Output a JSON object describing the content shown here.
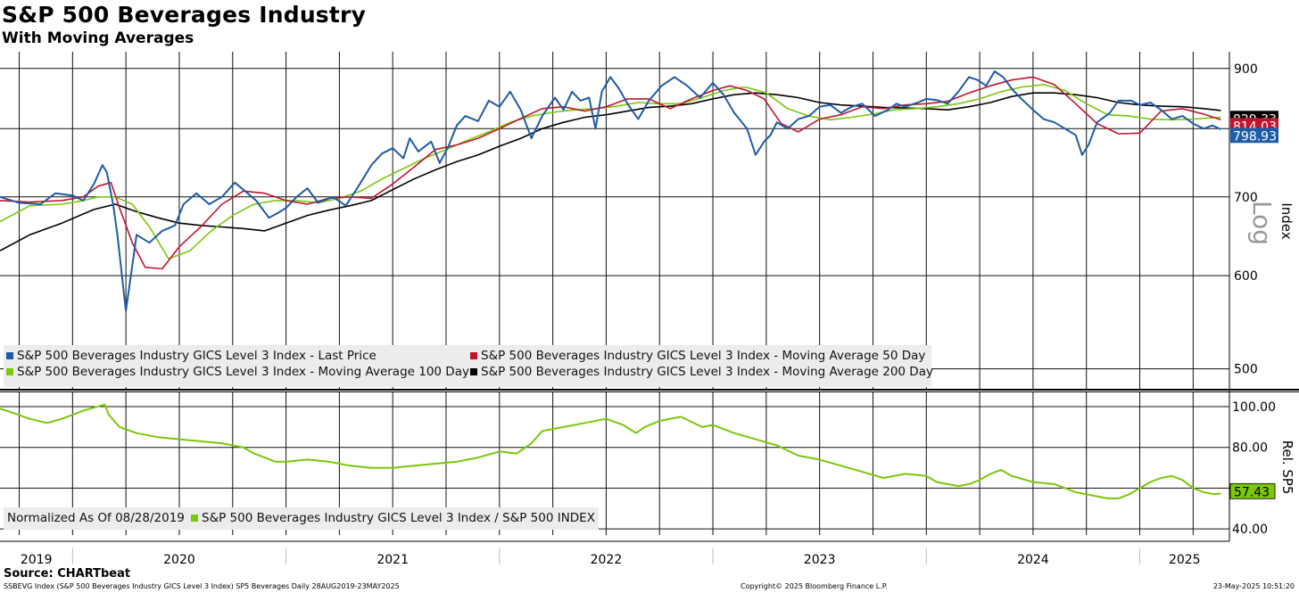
{
  "header": {
    "title": "S&P 500 Beverages Industry",
    "subtitle": "With Moving Averages"
  },
  "footer": {
    "source": "Source: CHARTbeat",
    "left": "SSBEVG Index (S&P 500 Beverages Industry GICS Level 3 Index) SP5 Beverages  Daily 28AUG2019-23MAY2025",
    "middle": "Copyright© 2025 Bloomberg Finance L.P.",
    "right": "23-May-2025 10:51:20"
  },
  "colors": {
    "last_price": "#1f5ba6",
    "ma50": "#c0152f",
    "ma100": "#7ac70c",
    "ma200": "#000000",
    "relative": "#7ac70c"
  },
  "chart_data": [
    {
      "type": "line",
      "title": "S&P 500 Beverages Industry",
      "subtitle": "With Moving Averages",
      "ylabel": "Index",
      "scale_label": "Log",
      "yscale": "log",
      "ylim": [
        480,
        930
      ],
      "yticks": [
        500,
        600,
        700,
        900
      ],
      "ytick_labels": [
        "500",
        "600",
        "700",
        "900"
      ],
      "xlim": [
        2019.66,
        2025.42
      ],
      "x_categories": [
        "2019",
        "2020",
        "2021",
        "2022",
        "2023",
        "2024",
        "2025"
      ],
      "legend": [
        "S&P 500 Beverages Industry GICS Level 3 Index - Last Price",
        "S&P 500 Beverages Industry GICS Level 3 Index - Moving Average 50 Day",
        "S&P 500 Beverages Industry GICS Level 3 Index - Moving Average 100 Day",
        "S&P 500 Beverages Industry GICS Level 3 Index - Moving Average 200 Day"
      ],
      "last_value_labels": [
        {
          "series": "Moving Average 200 Day",
          "text": "829.33",
          "value": 829.33
        },
        {
          "series": "Moving Average 50 Day",
          "text": "814.03",
          "value": 814.03
        },
        {
          "series": "Last Price",
          "text": "798.93",
          "value": 798.93
        }
      ],
      "series": [
        {
          "name": "Last Price",
          "x": [
            2019.66,
            2019.75,
            2019.85,
            2019.92,
            2020.0,
            2020.05,
            2020.1,
            2020.14,
            2020.16,
            2020.19,
            2020.21,
            2020.25,
            2020.3,
            2020.36,
            2020.42,
            2020.48,
            2020.52,
            2020.58,
            2020.64,
            2020.7,
            2020.76,
            2020.8,
            2020.86,
            2020.92,
            2020.96,
            2021.0,
            2021.05,
            2021.1,
            2021.15,
            2021.22,
            2021.28,
            2021.34,
            2021.4,
            2021.45,
            2021.5,
            2021.55,
            2021.58,
            2021.62,
            2021.68,
            2021.72,
            2021.76,
            2021.8,
            2021.84,
            2021.9,
            2021.95,
            2022.0,
            2022.05,
            2022.1,
            2022.15,
            2022.2,
            2022.26,
            2022.3,
            2022.34,
            2022.38,
            2022.42,
            2022.45,
            2022.48,
            2022.52,
            2022.56,
            2022.6,
            2022.65,
            2022.7,
            2022.76,
            2022.82,
            2022.88,
            2022.94,
            2023.0,
            2023.05,
            2023.1,
            2023.16,
            2023.2,
            2023.24,
            2023.27,
            2023.3,
            2023.35,
            2023.4,
            2023.45,
            2023.5,
            2023.55,
            2023.6,
            2023.65,
            2023.7,
            2023.76,
            2023.82,
            2023.86,
            2023.9,
            2023.96,
            2024.0,
            2024.05,
            2024.1,
            2024.15,
            2024.2,
            2024.24,
            2024.28,
            2024.32,
            2024.36,
            2024.4,
            2024.44,
            2024.5,
            2024.55,
            2024.6,
            2024.65,
            2024.7,
            2024.73,
            2024.76,
            2024.8,
            2024.86,
            2024.9,
            2024.96,
            2025.0,
            2025.05,
            2025.1,
            2025.15,
            2025.2,
            2025.25,
            2025.3,
            2025.34,
            2025.38
          ],
          "values": [
            700,
            692,
            690,
            705,
            702,
            695,
            718,
            745,
            735,
            690,
            650,
            560,
            650,
            640,
            655,
            662,
            690,
            705,
            690,
            700,
            720,
            710,
            695,
            672,
            678,
            685,
            700,
            712,
            692,
            700,
            688,
            715,
            745,
            762,
            770,
            755,
            785,
            765,
            780,
            748,
            772,
            805,
            820,
            812,
            845,
            835,
            860,
            830,
            785,
            820,
            850,
            830,
            860,
            845,
            850,
            800,
            860,
            885,
            865,
            840,
            815,
            845,
            870,
            885,
            870,
            850,
            875,
            855,
            825,
            800,
            760,
            780,
            790,
            810,
            800,
            815,
            820,
            835,
            838,
            825,
            835,
            840,
            820,
            830,
            840,
            835,
            842,
            848,
            846,
            840,
            860,
            885,
            880,
            870,
            895,
            885,
            865,
            850,
            830,
            815,
            810,
            800,
            790,
            760,
            775,
            810,
            825,
            845,
            845,
            838,
            842,
            830,
            815,
            820,
            808,
            800,
            805,
            799
          ]
        },
        {
          "name": "Moving Average 50 Day",
          "x": [
            2019.66,
            2019.8,
            2019.95,
            2020.05,
            2020.12,
            2020.18,
            2020.22,
            2020.28,
            2020.34,
            2020.42,
            2020.5,
            2020.6,
            2020.7,
            2020.8,
            2020.9,
            2021.0,
            2021.1,
            2021.2,
            2021.3,
            2021.4,
            2021.5,
            2021.6,
            2021.7,
            2021.8,
            2021.9,
            2022.0,
            2022.1,
            2022.2,
            2022.3,
            2022.4,
            2022.5,
            2022.6,
            2022.7,
            2022.8,
            2022.9,
            2023.0,
            2023.08,
            2023.16,
            2023.24,
            2023.32,
            2023.4,
            2023.5,
            2023.6,
            2023.7,
            2023.8,
            2023.9,
            2024.0,
            2024.1,
            2024.2,
            2024.3,
            2024.4,
            2024.5,
            2024.6,
            2024.7,
            2024.8,
            2024.9,
            2025.0,
            2025.1,
            2025.2,
            2025.3,
            2025.38
          ],
          "values": [
            695,
            693,
            695,
            700,
            715,
            720,
            685,
            640,
            610,
            608,
            635,
            660,
            690,
            708,
            705,
            695,
            690,
            698,
            700,
            698,
            718,
            742,
            768,
            775,
            785,
            800,
            816,
            832,
            835,
            828,
            835,
            848,
            848,
            832,
            848,
            862,
            870,
            862,
            848,
            808,
            795,
            815,
            822,
            835,
            832,
            838,
            840,
            844,
            858,
            870,
            880,
            885,
            872,
            840,
            808,
            792,
            793,
            828,
            832,
            823,
            814
          ]
        },
        {
          "name": "Moving Average 100 Day",
          "x": [
            2019.66,
            2019.8,
            2019.95,
            2020.05,
            2020.12,
            2020.2,
            2020.28,
            2020.36,
            2020.45,
            2020.55,
            2020.65,
            2020.75,
            2020.85,
            2020.95,
            2021.05,
            2021.15,
            2021.25,
            2021.35,
            2021.45,
            2021.55,
            2021.65,
            2021.75,
            2021.85,
            2021.95,
            2022.05,
            2022.15,
            2022.25,
            2022.35,
            2022.45,
            2022.55,
            2022.65,
            2022.75,
            2022.85,
            2022.95,
            2023.05,
            2023.15,
            2023.25,
            2023.35,
            2023.45,
            2023.55,
            2023.65,
            2023.75,
            2023.85,
            2023.95,
            2024.05,
            2024.15,
            2024.25,
            2024.35,
            2024.45,
            2024.55,
            2024.65,
            2024.75,
            2024.85,
            2024.95,
            2025.05,
            2025.15,
            2025.25,
            2025.38
          ],
          "values": [
            667,
            688,
            690,
            695,
            700,
            700,
            690,
            660,
            620,
            630,
            655,
            675,
            690,
            695,
            695,
            692,
            698,
            708,
            725,
            740,
            755,
            768,
            782,
            795,
            810,
            820,
            826,
            830,
            832,
            836,
            842,
            840,
            840,
            850,
            862,
            868,
            858,
            832,
            820,
            814,
            818,
            823,
            830,
            832,
            835,
            840,
            848,
            860,
            868,
            872,
            862,
            840,
            822,
            820,
            815,
            814,
            815,
            818
          ]
        },
        {
          "name": "Moving Average 200 Day",
          "x": [
            2019.66,
            2019.8,
            2019.95,
            2020.1,
            2020.2,
            2020.3,
            2020.4,
            2020.5,
            2020.6,
            2020.7,
            2020.8,
            2020.9,
            2021.0,
            2021.1,
            2021.2,
            2021.3,
            2021.4,
            2021.5,
            2021.6,
            2021.7,
            2021.8,
            2021.9,
            2022.0,
            2022.1,
            2022.2,
            2022.3,
            2022.4,
            2022.5,
            2022.6,
            2022.7,
            2022.8,
            2022.9,
            2023.0,
            2023.1,
            2023.2,
            2023.3,
            2023.4,
            2023.5,
            2023.6,
            2023.7,
            2023.8,
            2023.9,
            2024.0,
            2024.1,
            2024.2,
            2024.3,
            2024.4,
            2024.5,
            2024.6,
            2024.7,
            2024.8,
            2024.9,
            2025.0,
            2025.1,
            2025.2,
            2025.3,
            2025.38
          ],
          "values": [
            630,
            650,
            665,
            683,
            690,
            680,
            672,
            665,
            662,
            660,
            658,
            655,
            665,
            675,
            682,
            688,
            695,
            710,
            725,
            738,
            750,
            760,
            773,
            785,
            800,
            810,
            818,
            822,
            828,
            834,
            836,
            840,
            848,
            855,
            858,
            855,
            850,
            842,
            838,
            836,
            834,
            833,
            832,
            830,
            835,
            842,
            852,
            858,
            858,
            855,
            850,
            842,
            838,
            836,
            835,
            832,
            829
          ]
        }
      ]
    },
    {
      "type": "line",
      "ylabel": "Rel. SP5",
      "ylim": [
        37,
        107
      ],
      "yticks": [
        40,
        80,
        100
      ],
      "ytick_labels": [
        "40.00",
        "80.00",
        "100.00"
      ],
      "xlim": [
        2019.66,
        2025.42
      ],
      "legend": [
        "Normalized As Of 08/28/2019",
        "S&P 500 Beverages Industry GICS Level 3 Index / S&P 500 INDEX"
      ],
      "last_value_labels": [
        {
          "series": "Relative",
          "text": "57.43",
          "value": 57.43
        }
      ],
      "series": [
        {
          "name": "S&P 500 Beverages Industry GICS Level 3 Index / S&P 500 INDEX",
          "x": [
            2019.66,
            2019.72,
            2019.8,
            2019.88,
            2019.95,
            2020.05,
            2020.15,
            2020.17,
            2020.22,
            2020.3,
            2020.4,
            2020.5,
            2020.6,
            2020.7,
            2020.8,
            2020.85,
            2020.9,
            2020.95,
            2021.0,
            2021.1,
            2021.2,
            2021.3,
            2021.4,
            2021.5,
            2021.6,
            2021.7,
            2021.8,
            2021.9,
            2022.0,
            2022.08,
            2022.15,
            2022.2,
            2022.25,
            2022.3,
            2022.4,
            2022.5,
            2022.58,
            2022.64,
            2022.68,
            2022.75,
            2022.85,
            2022.95,
            2023.0,
            2023.1,
            2023.2,
            2023.3,
            2023.4,
            2023.5,
            2023.6,
            2023.7,
            2023.8,
            2023.9,
            2024.0,
            2024.05,
            2024.1,
            2024.15,
            2024.2,
            2024.25,
            2024.3,
            2024.35,
            2024.4,
            2024.5,
            2024.6,
            2024.65,
            2024.7,
            2024.75,
            2024.8,
            2024.85,
            2024.9,
            2024.95,
            2025.0,
            2025.05,
            2025.1,
            2025.15,
            2025.2,
            2025.25,
            2025.3,
            2025.35,
            2025.38
          ],
          "values": [
            99,
            97,
            94,
            92,
            94,
            98,
            101,
            96,
            90,
            87,
            85,
            84,
            83,
            82,
            80,
            77,
            75,
            73,
            73,
            74,
            73,
            71,
            70,
            70,
            71,
            72,
            73,
            75,
            78,
            77,
            82,
            88,
            89,
            90,
            92,
            94,
            91,
            87,
            90,
            93,
            95,
            90,
            91,
            87,
            84,
            81,
            76,
            74,
            71,
            68,
            65,
            67,
            66,
            63,
            62,
            61,
            62,
            64,
            67,
            69,
            66,
            63,
            62,
            60,
            58,
            57,
            56,
            55,
            55,
            57,
            60,
            63,
            65,
            66,
            64,
            60,
            58,
            57,
            57.43
          ]
        }
      ]
    }
  ]
}
